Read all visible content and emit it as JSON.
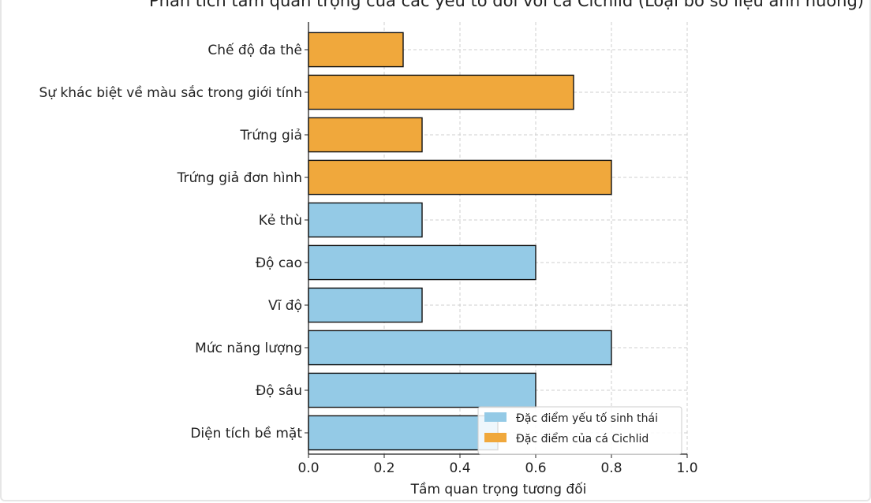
{
  "chart_data": {
    "type": "bar",
    "orientation": "horizontal",
    "title": "Phân tích tầm quan trọng của các yếu tố đối với cá Cichlid (Loại bỏ số liệu ảnh hưởng)",
    "xlabel": "Tầm quan trọng tương đối",
    "ylabel": "",
    "xlim": [
      0,
      1.0
    ],
    "xticks": [
      "0.0",
      "0.2",
      "0.4",
      "0.6",
      "0.8",
      "1.0"
    ],
    "grid": true,
    "legend_position": "bottom-right",
    "categories": [
      "Chế độ đa thê",
      "Sự khác biệt về màu sắc trong giới tính",
      "Trứng giả",
      "Trứng giả đơn hình",
      "Kẻ thù",
      "Độ cao",
      "Vĩ độ",
      "Mức năng lượng",
      "Độ sâu",
      "Diện tích bề mặt"
    ],
    "values": [
      0.25,
      0.7,
      0.3,
      0.8,
      0.3,
      0.6,
      0.3,
      0.8,
      0.6,
      0.5
    ],
    "groups": [
      1,
      1,
      1,
      1,
      0,
      0,
      0,
      0,
      0,
      0
    ],
    "series": [
      {
        "name": "Đặc điểm yếu tố sinh thái",
        "color": "#94cae6"
      },
      {
        "name": "Đặc điểm của cá Cichlid",
        "color": "#f0a83c"
      }
    ]
  }
}
